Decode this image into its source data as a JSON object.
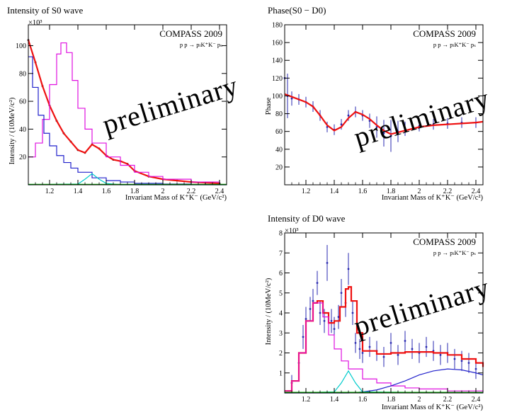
{
  "figure": {
    "experiment": "COMPASS 2009",
    "reaction": "p p → pₗK⁺K⁻ pₛ",
    "watermark": "preliminary"
  },
  "chart_data": [
    {
      "id": "s0",
      "type": "line",
      "title": "Intensity of S0 wave",
      "xlabel": "Invariant Mass of K⁺K⁻ (GeV/c²)",
      "ylabel": "Intensity / (10MeV/c²)",
      "y_multiplier": "×10³",
      "xlim": [
        1.05,
        2.45
      ],
      "ylim": [
        0,
        115
      ],
      "xticks": [
        1.2,
        1.4,
        1.6,
        1.8,
        2.0,
        2.2,
        2.4
      ],
      "xtick_labels": [
        "1.2",
        "1.4",
        "1.6",
        "1.8",
        "2",
        "2.2",
        "2.4"
      ],
      "yticks": [
        20,
        40,
        60,
        80,
        100
      ],
      "ytick_labels": [
        "20",
        "40",
        "60",
        "80",
        "100"
      ],
      "series": [
        {
          "name": "data",
          "kind": "points",
          "color": "#000000",
          "x": [
            1.05,
            1.1,
            1.15,
            1.2,
            1.25,
            1.3,
            1.35,
            1.4,
            1.45,
            1.5,
            1.55,
            1.6,
            1.65,
            1.7,
            1.75,
            1.8,
            1.9,
            2.0,
            2.1,
            2.2,
            2.3,
            2.4
          ],
          "y": [
            104,
            88,
            71,
            57,
            46,
            37,
            31,
            25,
            23,
            29,
            26,
            21,
            18,
            17,
            15,
            10,
            6,
            4,
            3,
            2,
            1.5,
            1
          ]
        },
        {
          "name": "total fit",
          "kind": "line",
          "color": "#ee1111",
          "x": [
            1.05,
            1.1,
            1.15,
            1.2,
            1.25,
            1.3,
            1.35,
            1.4,
            1.45,
            1.5,
            1.55,
            1.6,
            1.65,
            1.7,
            1.75,
            1.8,
            1.9,
            2.0,
            2.1,
            2.2,
            2.3,
            2.4
          ],
          "y": [
            104,
            88,
            71,
            57,
            46,
            37,
            31,
            25,
            23,
            29,
            26,
            21,
            18,
            17,
            15,
            10,
            6,
            4,
            3,
            2,
            1.5,
            1
          ]
        },
        {
          "name": "magenta component",
          "kind": "step",
          "color": "#e010e0",
          "x": [
            1.05,
            1.1,
            1.15,
            1.2,
            1.25,
            1.28,
            1.32,
            1.36,
            1.4,
            1.45,
            1.5,
            1.6,
            1.7,
            1.8,
            1.9,
            2.0,
            2.2,
            2.4
          ],
          "y": [
            20,
            30,
            47,
            72,
            94,
            102,
            95,
            75,
            55,
            40,
            30,
            20,
            14,
            9,
            6,
            4,
            2,
            1
          ]
        },
        {
          "name": "blue component",
          "kind": "step",
          "color": "#2222cc",
          "x": [
            1.05,
            1.08,
            1.12,
            1.16,
            1.2,
            1.25,
            1.3,
            1.35,
            1.4,
            1.5,
            1.6,
            1.7,
            1.8,
            2.0,
            2.2,
            2.4
          ],
          "y": [
            92,
            70,
            50,
            37,
            28,
            21,
            16,
            12,
            9,
            5,
            3,
            2,
            1,
            0.5,
            0.2,
            0
          ]
        },
        {
          "name": "cyan component",
          "kind": "line",
          "color": "#00cccc",
          "x": [
            1.05,
            1.4,
            1.45,
            1.5,
            1.55,
            1.6,
            1.7,
            2.45
          ],
          "y": [
            0,
            0.5,
            4,
            8,
            4,
            1,
            0,
            0
          ]
        },
        {
          "name": "green component",
          "kind": "line",
          "color": "#00aa00",
          "x": [
            1.05,
            2.45
          ],
          "y": [
            0.3,
            0.3
          ]
        }
      ]
    },
    {
      "id": "phase",
      "type": "line",
      "title": "Phase(S0 − D0)",
      "xlabel": "Invariant Mass of K⁺K⁻ (GeV/c²)",
      "ylabel": "Phase",
      "xlim": [
        1.05,
        2.45
      ],
      "ylim": [
        0,
        180
      ],
      "xticks": [
        1.2,
        1.4,
        1.6,
        1.8,
        2.0,
        2.2,
        2.4
      ],
      "xtick_labels": [
        "1.2",
        "1.4",
        "1.6",
        "1.8",
        "2",
        "2.2",
        "2.4"
      ],
      "yticks": [
        20,
        40,
        60,
        80,
        100,
        120,
        140,
        160,
        180
      ],
      "ytick_labels": [
        "20",
        "40",
        "60",
        "80",
        "100",
        "120",
        "140",
        "160",
        "180"
      ],
      "series": [
        {
          "name": "data",
          "kind": "points",
          "color": "#2a2ab0",
          "x": [
            1.05,
            1.07,
            1.1,
            1.15,
            1.2,
            1.25,
            1.3,
            1.35,
            1.4,
            1.45,
            1.5,
            1.55,
            1.6,
            1.65,
            1.7,
            1.75,
            1.8,
            1.85,
            1.9,
            2.0,
            2.1,
            2.2,
            2.3,
            2.4
          ],
          "y": [
            120,
            100,
            97,
            96,
            93,
            88,
            78,
            65,
            62,
            68,
            78,
            82,
            78,
            72,
            65,
            58,
            55,
            60,
            63,
            66,
            68,
            69,
            70,
            70
          ],
          "err": [
            60,
            25,
            8,
            6,
            6,
            6,
            6,
            6,
            6,
            6,
            6,
            6,
            6,
            8,
            12,
            15,
            18,
            12,
            8,
            6,
            6,
            6,
            6,
            6
          ]
        },
        {
          "name": "fit",
          "kind": "line",
          "color": "#ee1111",
          "x": [
            1.05,
            1.1,
            1.15,
            1.2,
            1.25,
            1.3,
            1.35,
            1.4,
            1.45,
            1.5,
            1.55,
            1.6,
            1.65,
            1.7,
            1.75,
            1.8,
            1.9,
            2.0,
            2.1,
            2.2,
            2.3,
            2.4,
            2.45
          ],
          "y": [
            102,
            99,
            96,
            93,
            88,
            78,
            67,
            61,
            65,
            75,
            82,
            79,
            74,
            67,
            61,
            57,
            61,
            65,
            67,
            68,
            69,
            70,
            71
          ]
        }
      ]
    },
    {
      "id": "d0",
      "type": "line",
      "title": "Intensity of D0 wave",
      "xlabel": "Invariant Mass of K⁺K⁻ (GeV/c²)",
      "ylabel": "Intensity / (10MeV/c²)",
      "y_multiplier": "×10³",
      "xlim": [
        1.05,
        2.45
      ],
      "ylim": [
        0,
        8
      ],
      "xticks": [
        1.2,
        1.4,
        1.6,
        1.8,
        2.0,
        2.2,
        2.4
      ],
      "xtick_labels": [
        "1.2",
        "1.4",
        "1.6",
        "1.8",
        "2",
        "2.2",
        "2.4"
      ],
      "yticks": [
        1,
        2,
        3,
        4,
        5,
        6,
        7,
        8
      ],
      "ytick_labels": [
        "1",
        "2",
        "3",
        "4",
        "5",
        "6",
        "7",
        "8"
      ],
      "series": [
        {
          "name": "data",
          "kind": "points",
          "color": "#2a2ab0",
          "x": [
            1.1,
            1.15,
            1.18,
            1.2,
            1.23,
            1.25,
            1.28,
            1.3,
            1.33,
            1.35,
            1.38,
            1.4,
            1.43,
            1.45,
            1.48,
            1.5,
            1.53,
            1.55,
            1.58,
            1.6,
            1.65,
            1.7,
            1.75,
            1.8,
            1.85,
            1.9,
            1.95,
            2.0,
            2.05,
            2.1,
            2.15,
            2.2,
            2.25,
            2.3,
            2.35,
            2.4
          ],
          "y": [
            0.5,
            1.5,
            2.8,
            3.7,
            4.2,
            4.6,
            5.5,
            4.0,
            3.6,
            6.5,
            3.6,
            3.2,
            3.8,
            5.0,
            4.5,
            6.2,
            4.0,
            2.5,
            2.2,
            2.0,
            2.3,
            2.1,
            1.8,
            2.5,
            1.9,
            2.6,
            2.2,
            2.0,
            2.3,
            2.1,
            1.9,
            2.0,
            1.7,
            1.6,
            1.5,
            1.2
          ],
          "err": [
            0.4,
            0.5,
            0.6,
            0.6,
            0.6,
            0.6,
            0.6,
            0.6,
            0.6,
            0.9,
            0.6,
            0.6,
            0.6,
            0.7,
            0.7,
            0.8,
            0.6,
            0.5,
            0.5,
            0.5,
            0.5,
            0.5,
            0.5,
            0.5,
            0.5,
            0.5,
            0.5,
            0.5,
            0.5,
            0.5,
            0.5,
            0.5,
            0.5,
            0.5,
            0.5,
            0.5
          ]
        },
        {
          "name": "total fit",
          "kind": "step",
          "color": "#ee1111",
          "x": [
            1.05,
            1.1,
            1.15,
            1.2,
            1.25,
            1.28,
            1.32,
            1.36,
            1.4,
            1.44,
            1.48,
            1.5,
            1.52,
            1.56,
            1.6,
            1.7,
            1.8,
            1.9,
            2.0,
            2.1,
            2.2,
            2.3,
            2.4,
            2.45
          ],
          "y": [
            0.1,
            0.6,
            2.0,
            3.6,
            4.5,
            4.6,
            4.0,
            3.5,
            3.6,
            4.3,
            5.2,
            5.3,
            4.6,
            3.0,
            2.1,
            1.95,
            2.0,
            2.05,
            2.05,
            2.0,
            1.9,
            1.7,
            1.5,
            1.3
          ]
        },
        {
          "name": "magenta component",
          "kind": "step",
          "color": "#e010e0",
          "x": [
            1.05,
            1.1,
            1.15,
            1.2,
            1.25,
            1.28,
            1.32,
            1.36,
            1.4,
            1.45,
            1.5,
            1.6,
            1.7,
            1.8,
            1.9,
            2.0,
            2.2,
            2.45
          ],
          "y": [
            0.1,
            0.6,
            2.0,
            3.6,
            4.5,
            4.5,
            3.8,
            2.9,
            2.2,
            1.6,
            1.2,
            0.7,
            0.5,
            0.35,
            0.25,
            0.2,
            0.1,
            0.05
          ]
        },
        {
          "name": "blue component",
          "kind": "line",
          "color": "#2222cc",
          "x": [
            1.05,
            1.5,
            1.6,
            1.7,
            1.8,
            1.9,
            2.0,
            2.1,
            2.2,
            2.3,
            2.4,
            2.45
          ],
          "y": [
            0,
            0,
            0.05,
            0.15,
            0.35,
            0.6,
            0.9,
            1.1,
            1.2,
            1.15,
            1.0,
            0.9
          ]
        },
        {
          "name": "cyan component",
          "kind": "line",
          "color": "#00cccc",
          "x": [
            1.05,
            1.4,
            1.45,
            1.5,
            1.55,
            1.6,
            2.45
          ],
          "y": [
            0,
            0.05,
            0.5,
            1.1,
            0.5,
            0.05,
            0
          ]
        },
        {
          "name": "green component",
          "kind": "line",
          "color": "#00aa00",
          "x": [
            1.05,
            2.45
          ],
          "y": [
            0.03,
            0.03
          ]
        }
      ]
    }
  ]
}
